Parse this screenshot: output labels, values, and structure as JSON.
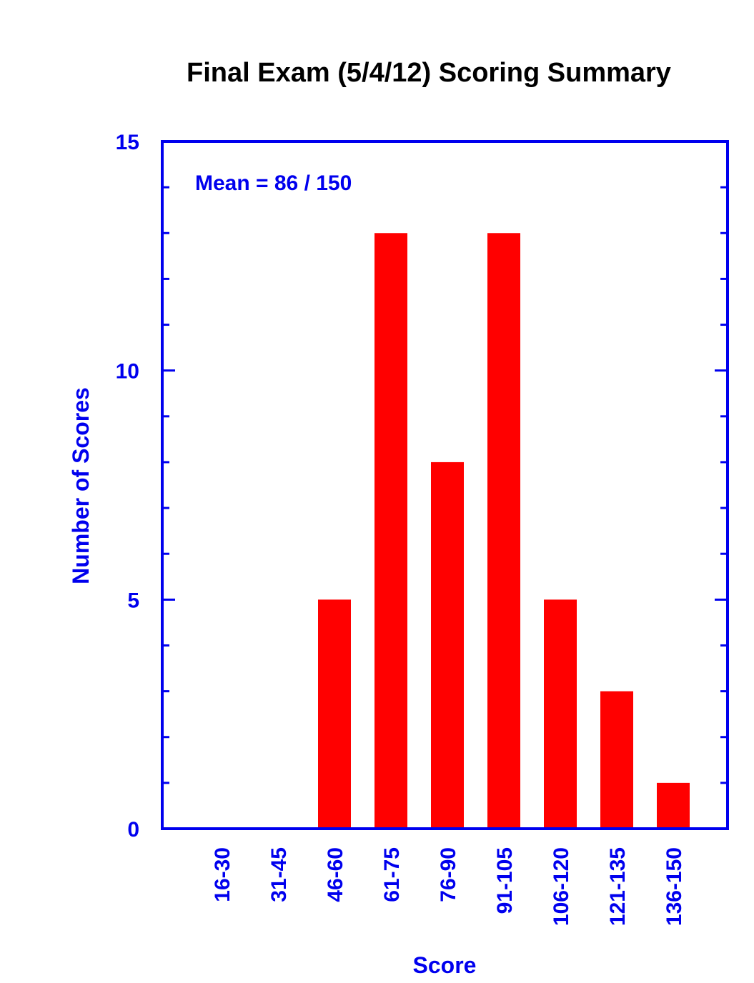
{
  "chart_data": {
    "type": "bar",
    "title": "Final Exam (5/4/12) Scoring Summary",
    "xlabel": "Score",
    "ylabel": "Number of Scores",
    "categories": [
      "16-30",
      "31-45",
      "46-60",
      "61-75",
      "76-90",
      "91-105",
      "106-120",
      "121-135",
      "136-150"
    ],
    "values": [
      0,
      0,
      5,
      13,
      8,
      13,
      5,
      3,
      1
    ],
    "ylim": [
      0,
      15
    ],
    "yticks": [
      "0",
      "5",
      "10",
      "15"
    ],
    "minor_tick_step": 1,
    "annotation": "Mean = 86 / 150",
    "grid": false,
    "legend": "none",
    "colors": {
      "bar": "#ff0000",
      "axis": "#0000ee",
      "title": "#000000"
    }
  }
}
